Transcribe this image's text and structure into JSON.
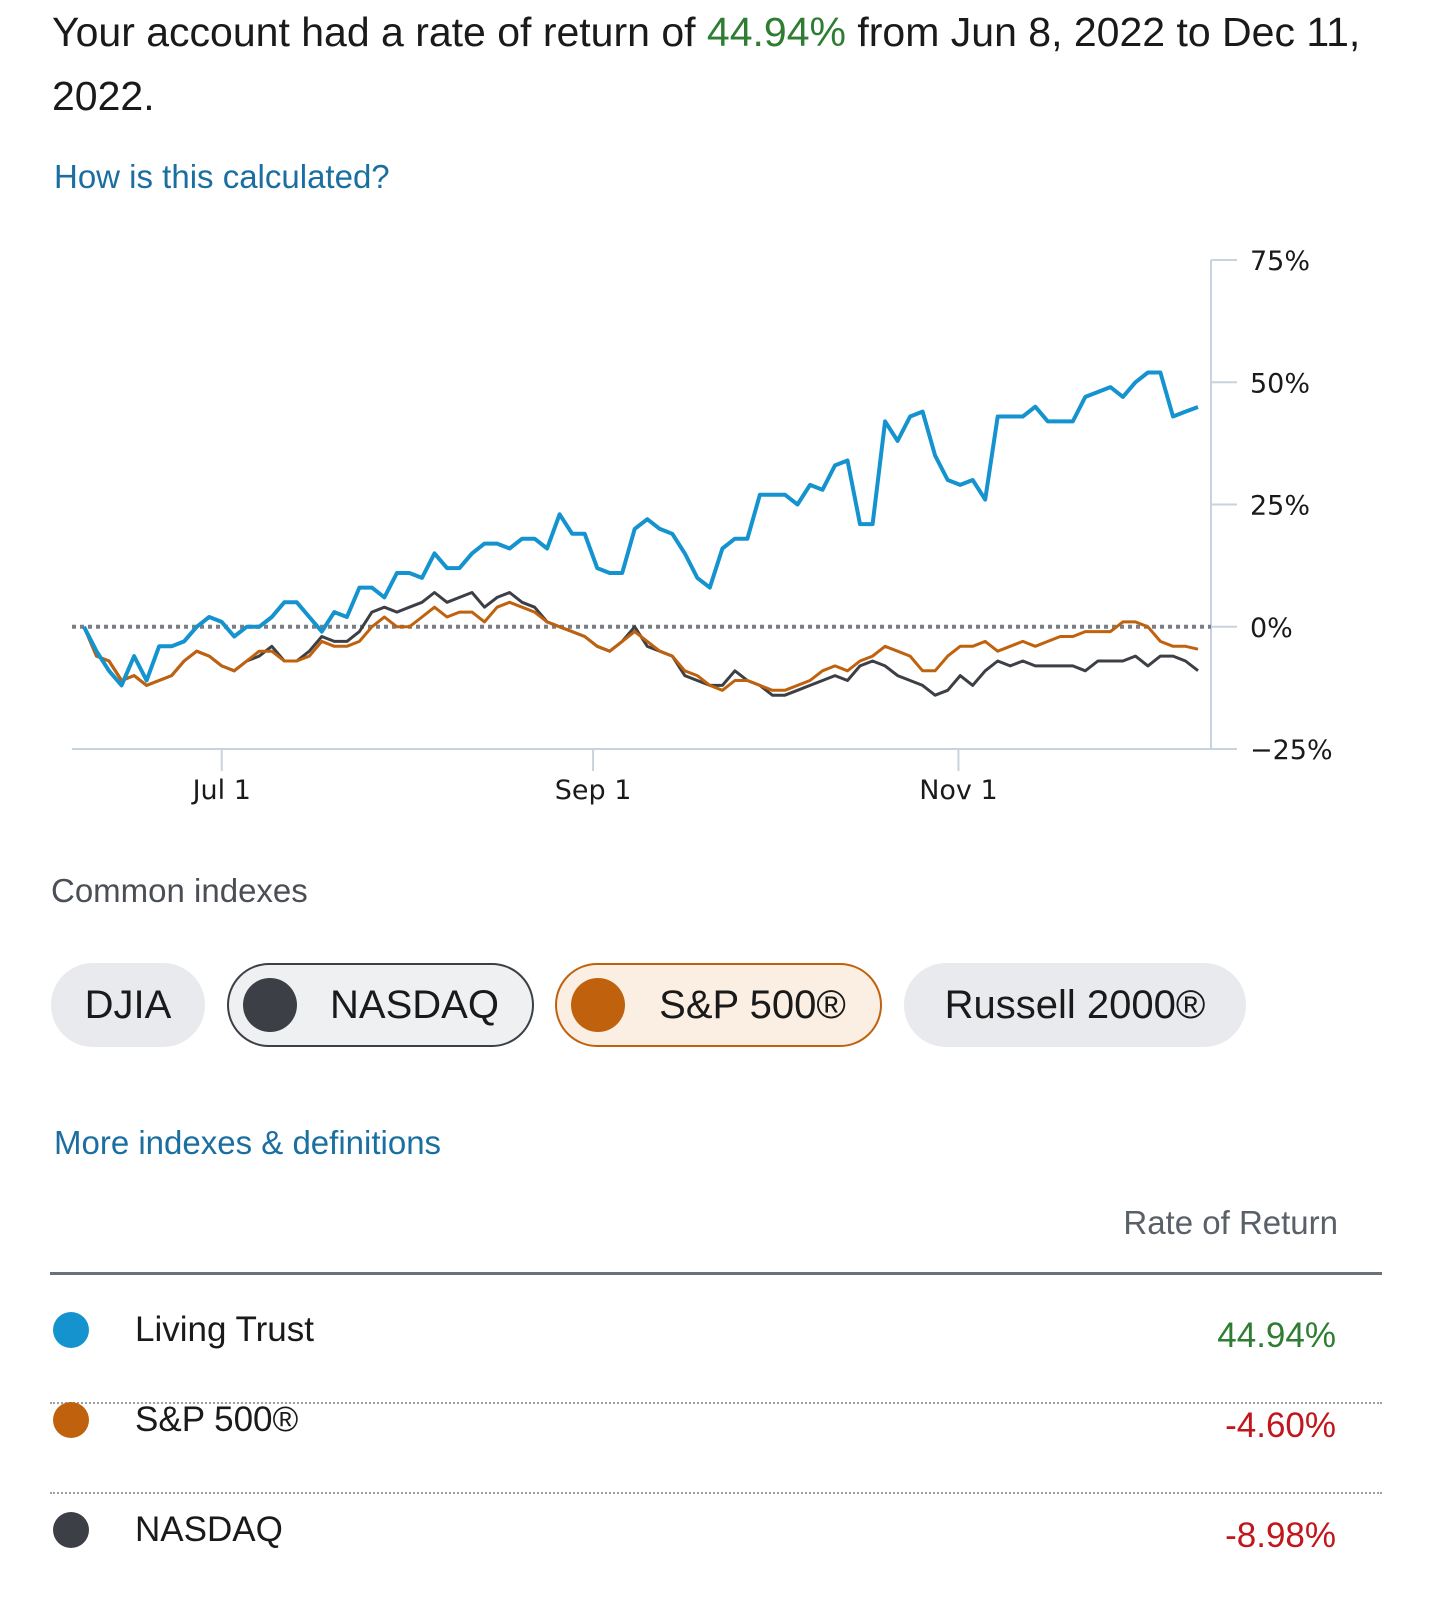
{
  "headline": {
    "prefix": "Your account had a rate of return of ",
    "rate": "44.94%",
    "suffix": " from Jun 8, 2022 to Dec 11, 2022."
  },
  "links": {
    "calculated": "How is this calculated?",
    "more_indexes": "More indexes & definitions"
  },
  "chart_data": {
    "type": "line",
    "x_range": [
      "Jun 8, 2022",
      "Dec 11, 2022"
    ],
    "x_ticks": [
      "Jul 1",
      "Sep 1",
      "Nov 1"
    ],
    "y_ticks": [
      "75%",
      "50%",
      "25%",
      "0%",
      "−25%"
    ],
    "ylim": [
      -25,
      75
    ],
    "baseline": 0,
    "series": [
      {
        "name": "Living Trust",
        "color": "#1493cf",
        "values": [
          0,
          -5,
          -9,
          -12,
          -6,
          -11,
          -4,
          -4,
          -3,
          0,
          2,
          1,
          -2,
          0,
          0,
          2,
          5,
          5,
          2,
          -1,
          3,
          2,
          8,
          8,
          6,
          11,
          11,
          10,
          15,
          12,
          12,
          15,
          17,
          17,
          16,
          18,
          18,
          16,
          23,
          19,
          19,
          12,
          11,
          11,
          20,
          22,
          20,
          19,
          15,
          10,
          8,
          16,
          18,
          18,
          27,
          27,
          27,
          25,
          29,
          28,
          33,
          34,
          21,
          21,
          42,
          38,
          43,
          44,
          35,
          30,
          29,
          30,
          26,
          43,
          43,
          43,
          45,
          42,
          42,
          42,
          47,
          48,
          49,
          47,
          50,
          52,
          52,
          43,
          44,
          44.94
        ]
      },
      {
        "name": "S&P 500®",
        "color": "#c0620d",
        "values": [
          0,
          -6,
          -7,
          -11,
          -10,
          -12,
          -11,
          -10,
          -7,
          -5,
          -6,
          -8,
          -9,
          -7,
          -5,
          -5,
          -7,
          -7,
          -6,
          -3,
          -4,
          -4,
          -3,
          0,
          2,
          0,
          0,
          2,
          4,
          2,
          3,
          3,
          1,
          4,
          5,
          4,
          3,
          1,
          0,
          -1,
          -2,
          -4,
          -5,
          -3,
          -1,
          -3,
          -5,
          -6,
          -9,
          -10,
          -12,
          -13,
          -11,
          -11,
          -12,
          -13,
          -13,
          -12,
          -11,
          -9,
          -8,
          -9,
          -7,
          -6,
          -4,
          -5,
          -6,
          -9,
          -9,
          -6,
          -4,
          -4,
          -3,
          -5,
          -4,
          -3,
          -4,
          -3,
          -2,
          -2,
          -1,
          -1,
          -1,
          1,
          1,
          0,
          -3,
          -4,
          -4,
          -4.6
        ]
      },
      {
        "name": "NASDAQ",
        "color": "#3c4046",
        "values": [
          0,
          -6,
          -7,
          -11,
          -10,
          -12,
          -11,
          -10,
          -7,
          -5,
          -6,
          -8,
          -9,
          -7,
          -6,
          -4,
          -7,
          -7,
          -5,
          -2,
          -3,
          -3,
          -1,
          3,
          4,
          3,
          4,
          5,
          7,
          5,
          6,
          7,
          4,
          6,
          7,
          5,
          4,
          1,
          0,
          -1,
          -2,
          -4,
          -5,
          -3,
          0,
          -4,
          -5,
          -6,
          -10,
          -11,
          -12,
          -12,
          -9,
          -11,
          -12,
          -14,
          -14,
          -13,
          -12,
          -11,
          -10,
          -11,
          -8,
          -7,
          -8,
          -10,
          -11,
          -12,
          -14,
          -13,
          -10,
          -12,
          -9,
          -7,
          -8,
          -7,
          -8,
          -8,
          -8,
          -8,
          -9,
          -7,
          -7,
          -7,
          -6,
          -8,
          -6,
          -6,
          -7,
          -8.98
        ]
      }
    ]
  },
  "indexes": {
    "title": "Common indexes",
    "pills": [
      {
        "label": "DJIA",
        "selected": false
      },
      {
        "label": "NASDAQ",
        "selected": true,
        "color": "#3c4046"
      },
      {
        "label": "S&P 500®",
        "selected": true,
        "color": "#c0620d"
      },
      {
        "label": "Russell 2000®",
        "selected": false
      }
    ]
  },
  "table": {
    "header": "Rate of Return",
    "rows": [
      {
        "name": "Living Trust",
        "value": "44.94%",
        "color": "#1493cf"
      },
      {
        "name": "S&P 500®",
        "value": "-4.60%",
        "color": "#c0620d"
      },
      {
        "name": "NASDAQ",
        "value": "-8.98%",
        "color": "#3c4046"
      }
    ]
  }
}
